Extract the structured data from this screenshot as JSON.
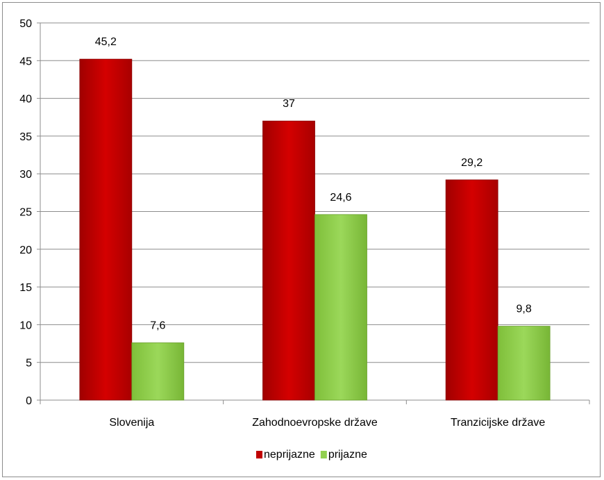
{
  "chart_data": {
    "type": "bar",
    "categories": [
      "Slovenija",
      "Zahodnoevropske države",
      "Tranzicijske države"
    ],
    "series": [
      {
        "name": "neprijazne",
        "values": [
          45.2,
          37,
          29.2
        ],
        "labels": [
          "45,2",
          "37",
          "29,2"
        ],
        "color": "#c00000"
      },
      {
        "name": "prijazne",
        "values": [
          7.6,
          24.6,
          9.8
        ],
        "labels": [
          "7,6",
          "24,6",
          "9,8"
        ],
        "color": "#92d050"
      }
    ],
    "ylim": [
      0,
      50
    ],
    "yticks": [
      0,
      5,
      10,
      15,
      20,
      25,
      30,
      35,
      40,
      45,
      50
    ],
    "grid": true,
    "legend": "bottom"
  }
}
